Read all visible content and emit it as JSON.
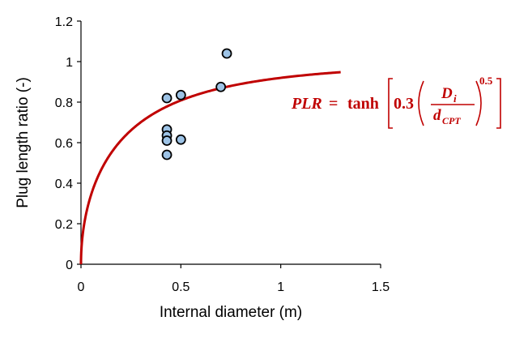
{
  "colors": {
    "curve": "#c00000",
    "marker_fill": "#9dc3e6",
    "marker_stroke": "#000000",
    "axis": "#000000",
    "equation": "#c00000"
  },
  "equation": {
    "lhs": "PLR",
    "equals": "=",
    "func": "tanh",
    "coef": "0.3",
    "num": "D",
    "num_sub": "i",
    "den": "d",
    "den_sub": "CPT",
    "exponent": "0.5"
  },
  "chart_data": {
    "type": "scatter",
    "title": "",
    "xlabel": "Internal diameter (m)",
    "ylabel": "Plug length ratio (-)",
    "xlim": [
      0,
      1.5
    ],
    "ylim": [
      0,
      1.2
    ],
    "xticks": [
      0,
      0.5,
      1,
      1.5
    ],
    "xtick_labels": [
      "0",
      "0.5",
      "1",
      "1.5"
    ],
    "yticks": [
      0,
      0.2,
      0.4,
      0.6,
      0.8,
      1,
      1.2
    ],
    "ytick_labels": [
      "0",
      "0.2",
      "0.4",
      "0.6",
      "0.8",
      "1",
      "1.2"
    ],
    "grid": false,
    "series": [
      {
        "kind": "scatter",
        "points": [
          {
            "x": 0.43,
            "y": 0.82
          },
          {
            "x": 0.43,
            "y": 0.665
          },
          {
            "x": 0.43,
            "y": 0.635
          },
          {
            "x": 0.43,
            "y": 0.61
          },
          {
            "x": 0.43,
            "y": 0.54
          },
          {
            "x": 0.5,
            "y": 0.835
          },
          {
            "x": 0.5,
            "y": 0.615
          },
          {
            "x": 0.7,
            "y": 0.875
          },
          {
            "x": 0.73,
            "y": 1.04
          }
        ]
      },
      {
        "kind": "curve",
        "function": "tanh(0.3*(x/d_cpt)^0.5)",
        "coefficient": 0.3,
        "exponent": 0.5,
        "d_cpt": 0.0357,
        "x_range": [
          0,
          1.3
        ]
      }
    ]
  }
}
